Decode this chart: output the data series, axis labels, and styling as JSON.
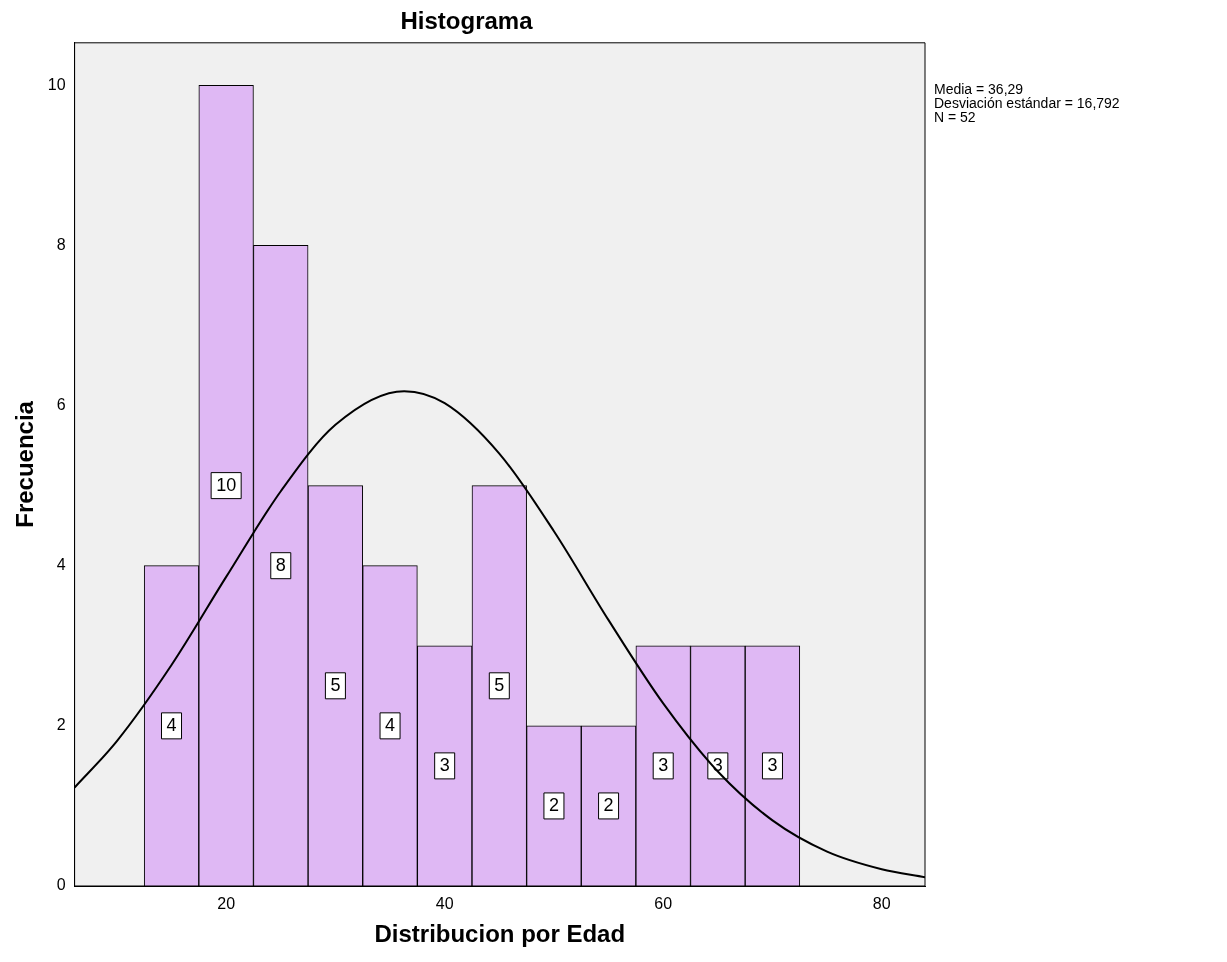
{
  "chart_data": {
    "type": "histogram",
    "title": "Histograma",
    "xlabel": "Distribucion por Edad",
    "ylabel": "Frecuencia",
    "bins": [
      12.5,
      17.5,
      22.5,
      27.5,
      32.5,
      37.5,
      42.5,
      47.5,
      52.5,
      57.5,
      62.5,
      67.5,
      72.5
    ],
    "values": [
      4,
      10,
      8,
      5,
      4,
      3,
      5,
      2,
      2,
      3,
      3,
      3
    ],
    "color": "#dfb8f4",
    "series": [
      {
        "type": "line",
        "color": "#000000",
        "x": [
          6.13,
          10,
          15,
          20,
          25,
          30,
          36.29,
          40,
          45,
          50,
          55,
          60,
          65,
          70,
          75,
          80,
          83.96
        ],
        "values": [
          1.23,
          1.81,
          2.76,
          3.86,
          4.93,
          5.76,
          6.18,
          6.03,
          5.4,
          4.43,
          3.32,
          2.28,
          1.43,
          0.82,
          0.43,
          0.21,
          0.11
        ]
      }
    ],
    "xlim": [
      6.13,
      83.96
    ],
    "xticks": [
      20,
      40,
      60,
      80
    ],
    "ylim": [
      0,
      10.53
    ],
    "yticks": [
      0,
      2,
      4,
      6,
      8,
      10
    ],
    "value_labels": [
      "4",
      "10",
      "8",
      "5",
      "4",
      "3",
      "5",
      "2",
      "2",
      "3",
      "3",
      "3"
    ],
    "grid": false,
    "legend": false,
    "marker": "none",
    "line_style": "solid",
    "annotations": [
      "Media = 36,29",
      "Desviación estándar = 16,792",
      "N = 52"
    ]
  }
}
